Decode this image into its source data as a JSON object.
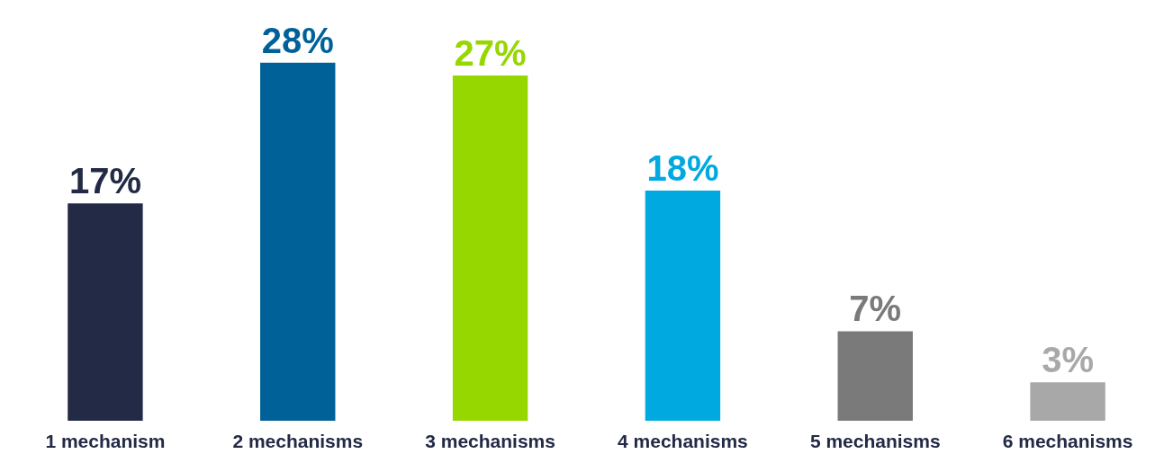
{
  "chart_data": {
    "type": "bar",
    "categories": [
      "1 mechanism",
      "2 mechanisms",
      "3 mechanisms",
      "4 mechanisms",
      "5 mechanisms",
      "6 mechanisms"
    ],
    "values": [
      17,
      28,
      27,
      18,
      7,
      3
    ],
    "colors": [
      "#222a45",
      "#006098",
      "#97d700",
      "#00a9e0",
      "#7a7a7a",
      "#a8a8a8"
    ],
    "value_labels": [
      "17%",
      "28%",
      "27%",
      "18%",
      "7%",
      "3%"
    ]
  }
}
